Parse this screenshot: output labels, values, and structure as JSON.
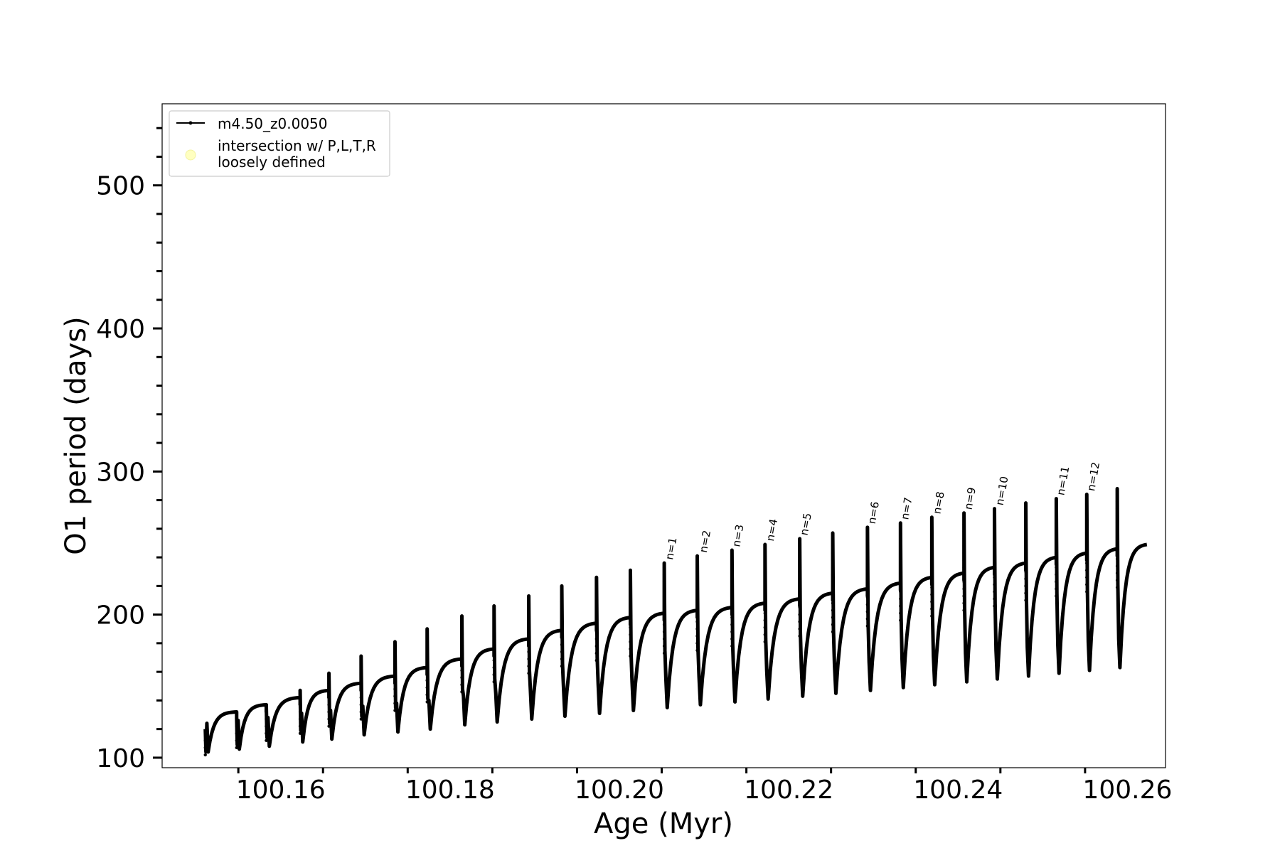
{
  "chart_data": {
    "type": "line",
    "title": "",
    "xlabel": "Age (Myr)",
    "ylabel": "O1 period (days)",
    "xlim": [
      100.146,
      100.2645
    ],
    "ylim": [
      93,
      557
    ],
    "x_ticks": [
      100.16,
      100.18,
      100.2,
      100.22,
      100.24,
      100.26
    ],
    "x_tick_labels": [
      "100.16",
      "100.18",
      "100.20",
      "100.22",
      "100.24",
      "100.26"
    ],
    "y_ticks": [
      100,
      200,
      300,
      400,
      500
    ],
    "y_tick_labels": [
      "100",
      "200",
      "300",
      "400",
      "500"
    ],
    "grid": false,
    "legend": {
      "placement": "upper-left",
      "entries": [
        {
          "label": "m4.50_z0.0050",
          "marker": "line-dot",
          "color": "#000000"
        },
        {
          "label": "intersection w/ P,L,T,R\nloosely defined",
          "marker": "circle",
          "color": "#ffffc0"
        }
      ]
    },
    "series": [
      {
        "name": "m4.50_z0.0050",
        "color": "#000000",
        "pulses": [
          {
            "x_start": 100.1511,
            "x_end": 100.1548,
            "trough": 104,
            "plateau": 132,
            "spike": 120
          },
          {
            "x_start": 100.1548,
            "x_end": 100.1583,
            "trough": 106,
            "plateau": 137,
            "spike": 128
          },
          {
            "x_start": 100.1583,
            "x_end": 100.1623,
            "trough": 108,
            "plateau": 142,
            "spike": 137
          },
          {
            "x_start": 100.1623,
            "x_end": 100.1657,
            "trough": 111,
            "plateau": 147,
            "spike": 147
          },
          {
            "x_start": 100.1657,
            "x_end": 100.1695,
            "trough": 113,
            "plateau": 152,
            "spike": 159
          },
          {
            "x_start": 100.1695,
            "x_end": 100.1735,
            "trough": 116,
            "plateau": 157,
            "spike": 171
          },
          {
            "x_start": 100.1735,
            "x_end": 100.1773,
            "trough": 118,
            "plateau": 163,
            "spike": 181
          },
          {
            "x_start": 100.1773,
            "x_end": 100.1814,
            "trough": 120,
            "plateau": 169,
            "spike": 190
          },
          {
            "x_start": 100.1814,
            "x_end": 100.1852,
            "trough": 123,
            "plateau": 176,
            "spike": 199
          },
          {
            "x_start": 100.1852,
            "x_end": 100.1893,
            "trough": 125,
            "plateau": 183,
            "spike": 206
          },
          {
            "x_start": 100.1893,
            "x_end": 100.1932,
            "trough": 127,
            "plateau": 189,
            "spike": 213
          },
          {
            "x_start": 100.1932,
            "x_end": 100.1973,
            "trough": 129,
            "plateau": 194,
            "spike": 220
          },
          {
            "x_start": 100.1973,
            "x_end": 100.2013,
            "trough": 131,
            "plateau": 198,
            "spike": 226
          },
          {
            "x_start": 100.2013,
            "x_end": 100.2053,
            "trough": 133,
            "plateau": 201,
            "spike": 231
          },
          {
            "x_start": 100.2053,
            "x_end": 100.2092,
            "trough": 135,
            "plateau": 203,
            "spike": 236
          },
          {
            "x_start": 100.2092,
            "x_end": 100.2133,
            "trough": 137,
            "plateau": 205,
            "spike": 241
          },
          {
            "x_start": 100.2133,
            "x_end": 100.2172,
            "trough": 139,
            "plateau": 208,
            "spike": 245
          },
          {
            "x_start": 100.2172,
            "x_end": 100.2213,
            "trough": 141,
            "plateau": 211,
            "spike": 249
          },
          {
            "x_start": 100.2213,
            "x_end": 100.2252,
            "trough": 143,
            "plateau": 215,
            "spike": 253
          },
          {
            "x_start": 100.2252,
            "x_end": 100.2293,
            "trough": 145,
            "plateau": 218,
            "spike": 257
          },
          {
            "x_start": 100.2293,
            "x_end": 100.2332,
            "trough": 147,
            "plateau": 222,
            "spike": 261
          },
          {
            "x_start": 100.2332,
            "x_end": 100.2369,
            "trough": 149,
            "plateau": 226,
            "spike": 264
          },
          {
            "x_start": 100.2369,
            "x_end": 100.2407,
            "trough": 151,
            "plateau": 229,
            "spike": 268
          },
          {
            "x_start": 100.2407,
            "x_end": 100.2443,
            "trough": 153,
            "plateau": 233,
            "spike": 271
          },
          {
            "x_start": 100.2443,
            "x_end": 100.248,
            "trough": 155,
            "plateau": 236,
            "spike": 274
          },
          {
            "x_start": 100.248,
            "x_end": 100.2516,
            "trough": 157,
            "plateau": 240,
            "spike": 278
          },
          {
            "x_start": 100.2516,
            "x_end": 100.2552,
            "trough": 159,
            "plateau": 243,
            "spike": 281
          },
          {
            "x_start": 100.2552,
            "x_end": 100.2588,
            "trough": 161,
            "plateau": 246,
            "spike": 284
          },
          {
            "x_start": 100.2588,
            "x_end": 100.2623,
            "trough": 163,
            "plateau": 249,
            "spike": 288
          }
        ]
      }
    ],
    "annotations": [
      {
        "text": "n=1",
        "x": 100.2058,
        "y": 238
      },
      {
        "text": "n=2",
        "x": 100.2098,
        "y": 243
      },
      {
        "text": "n=3",
        "x": 100.2137,
        "y": 247
      },
      {
        "text": "n=4",
        "x": 100.2177,
        "y": 251
      },
      {
        "text": "n=5",
        "x": 100.2217,
        "y": 255
      },
      {
        "text": "n=6",
        "x": 100.2297,
        "y": 263
      },
      {
        "text": "n=7",
        "x": 100.2336,
        "y": 266
      },
      {
        "text": "n=8",
        "x": 100.2374,
        "y": 270
      },
      {
        "text": "n=9",
        "x": 100.2411,
        "y": 273
      },
      {
        "text": "n=10",
        "x": 100.2448,
        "y": 276
      },
      {
        "text": "n=11",
        "x": 100.252,
        "y": 283
      },
      {
        "text": "n=12",
        "x": 100.2556,
        "y": 286
      }
    ]
  }
}
